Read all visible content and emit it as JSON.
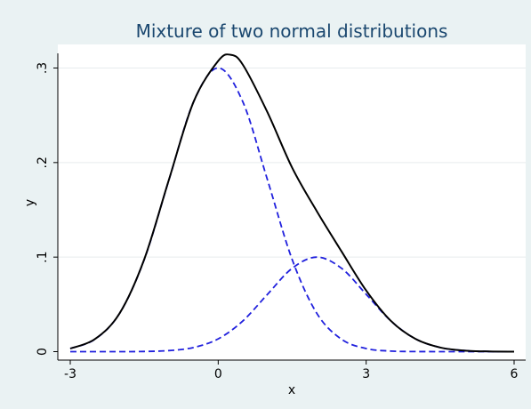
{
  "chart_data": {
    "type": "line",
    "title": "Mixture of two normal distributions",
    "xlabel": "x",
    "ylabel": "y",
    "xlim": [
      -3,
      6
    ],
    "ylim": [
      0,
      0.315
    ],
    "x_ticks": [
      -3,
      0,
      3,
      6
    ],
    "x_tick_labels": [
      "-3",
      "0",
      "3",
      "6"
    ],
    "y_ticks": [
      0,
      0.1,
      0.2,
      0.3
    ],
    "y_tick_labels": [
      "0",
      ".1",
      ".2",
      ".3"
    ],
    "grid": true,
    "legend": "none",
    "series": [
      {
        "style": "solid",
        "color": "#000000",
        "points": [
          [
            -3,
            0.0033
          ],
          [
            -2.5,
            0.0133
          ],
          [
            -2,
            0.0405
          ],
          [
            -1.5,
            0.0977
          ],
          [
            -1,
            0.1818
          ],
          [
            -0.5,
            0.2642
          ],
          [
            0,
            0.3075
          ],
          [
            0.25,
            0.314
          ],
          [
            0.5,
            0.3034
          ],
          [
            1,
            0.253
          ],
          [
            1.5,
            0.1945
          ],
          [
            2,
            0.1485
          ],
          [
            2.5,
            0.1061
          ],
          [
            3,
            0.0647
          ],
          [
            3.5,
            0.0326
          ],
          [
            4,
            0.0135
          ],
          [
            4.5,
            0.0044
          ],
          [
            5,
            0.0011
          ],
          [
            5.5,
            0.0002
          ],
          [
            6,
            0.0
          ]
        ]
      },
      {
        "style": "dashed",
        "color": "#2020dd",
        "points": [
          [
            -3,
            0.0033
          ],
          [
            -2.5,
            0.0131
          ],
          [
            -2,
            0.0405
          ],
          [
            -1.5,
            0.0974
          ],
          [
            -1,
            0.1815
          ],
          [
            -0.5,
            0.2641
          ],
          [
            0,
            0.3
          ],
          [
            0.5,
            0.2641
          ],
          [
            1,
            0.1815
          ],
          [
            1.5,
            0.0974
          ],
          [
            2,
            0.0405
          ],
          [
            2.5,
            0.0131
          ],
          [
            3,
            0.0033
          ],
          [
            3.5,
            0.0006
          ],
          [
            4,
            0.0001
          ],
          [
            5,
            0.0
          ],
          [
            6,
            0.0
          ]
        ]
      },
      {
        "style": "dashed",
        "color": "#2020dd",
        "points": [
          [
            -3,
            0.0
          ],
          [
            -2,
            0.0
          ],
          [
            -1.5,
            0.0002
          ],
          [
            -1,
            0.0011
          ],
          [
            -0.5,
            0.0044
          ],
          [
            0,
            0.0135
          ],
          [
            0.5,
            0.0325
          ],
          [
            1,
            0.0607
          ],
          [
            1.5,
            0.0882
          ],
          [
            2,
            0.1
          ],
          [
            2.5,
            0.0882
          ],
          [
            3,
            0.0607
          ],
          [
            3.5,
            0.0325
          ],
          [
            4,
            0.0135
          ],
          [
            4.5,
            0.0044
          ],
          [
            5,
            0.0011
          ],
          [
            5.5,
            0.0002
          ],
          [
            6,
            0.0
          ]
        ]
      }
    ]
  }
}
